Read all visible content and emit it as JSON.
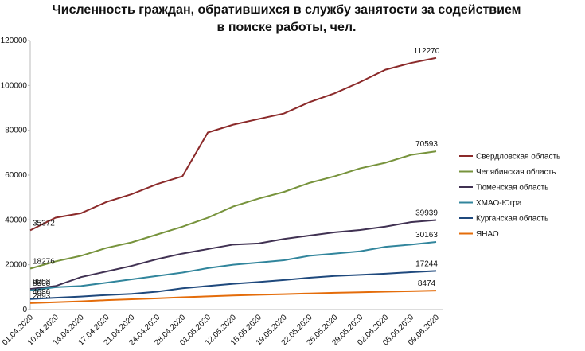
{
  "chart_data": {
    "type": "line",
    "title": "Численность граждан, обратившихся в службу занятости за содействием в поиске работы, чел.",
    "categories": [
      "01.04.2020",
      "10.04.2020",
      "14.04.2020",
      "17.04.2020",
      "21.04.2020",
      "24.04.2020",
      "28.04.2020",
      "01.05.2020",
      "12.05.2020",
      "15.05.2020",
      "19.05.2020",
      "22.05.2020",
      "26.05.2020",
      "29.05.2020",
      "02.06.2020",
      "05.06.2020",
      "09.06.2020"
    ],
    "series": [
      {
        "name": "Свердловская область",
        "color": "#8b2a2a",
        "values": [
          35372,
          41000,
          43000,
          48000,
          51500,
          56000,
          59500,
          79000,
          82500,
          85000,
          87500,
          92500,
          96500,
          101500,
          107000,
          110000,
          112270
        ]
      },
      {
        "name": "Челябинская область",
        "color": "#77933c",
        "values": [
          18276,
          21500,
          24000,
          27500,
          30000,
          33500,
          37000,
          41000,
          46000,
          49500,
          52500,
          56500,
          59500,
          63000,
          65500,
          69000,
          70593
        ]
      },
      {
        "name": "Тюменская область",
        "color": "#403152",
        "values": [
          9203,
          10500,
          14500,
          17000,
          19500,
          22500,
          25000,
          27000,
          29000,
          29500,
          31500,
          33000,
          34500,
          35500,
          37000,
          39000,
          39939
        ]
      },
      {
        "name": "ХМАО-Югра",
        "color": "#31859c",
        "values": [
          8508,
          10000,
          10500,
          12000,
          13500,
          15000,
          16500,
          18500,
          20000,
          21000,
          22000,
          24000,
          25000,
          26000,
          28000,
          29000,
          30163
        ]
      },
      {
        "name": "Курганская область",
        "color": "#1f497d",
        "values": [
          4686,
          5300,
          5800,
          6500,
          7000,
          8000,
          9500,
          10500,
          11500,
          12300,
          13200,
          14200,
          15000,
          15500,
          16000,
          16700,
          17244
        ]
      },
      {
        "name": "ЯНАО",
        "color": "#e46c0a",
        "values": [
          2893,
          3300,
          3700,
          4200,
          4600,
          5000,
          5500,
          5900,
          6300,
          6600,
          6900,
          7200,
          7500,
          7700,
          8000,
          8200,
          8474
        ]
      }
    ],
    "ylim": [
      0,
      120000
    ],
    "yticks": [
      0,
      20000,
      40000,
      60000,
      80000,
      100000,
      120000
    ],
    "grid": false,
    "legend": "right"
  }
}
